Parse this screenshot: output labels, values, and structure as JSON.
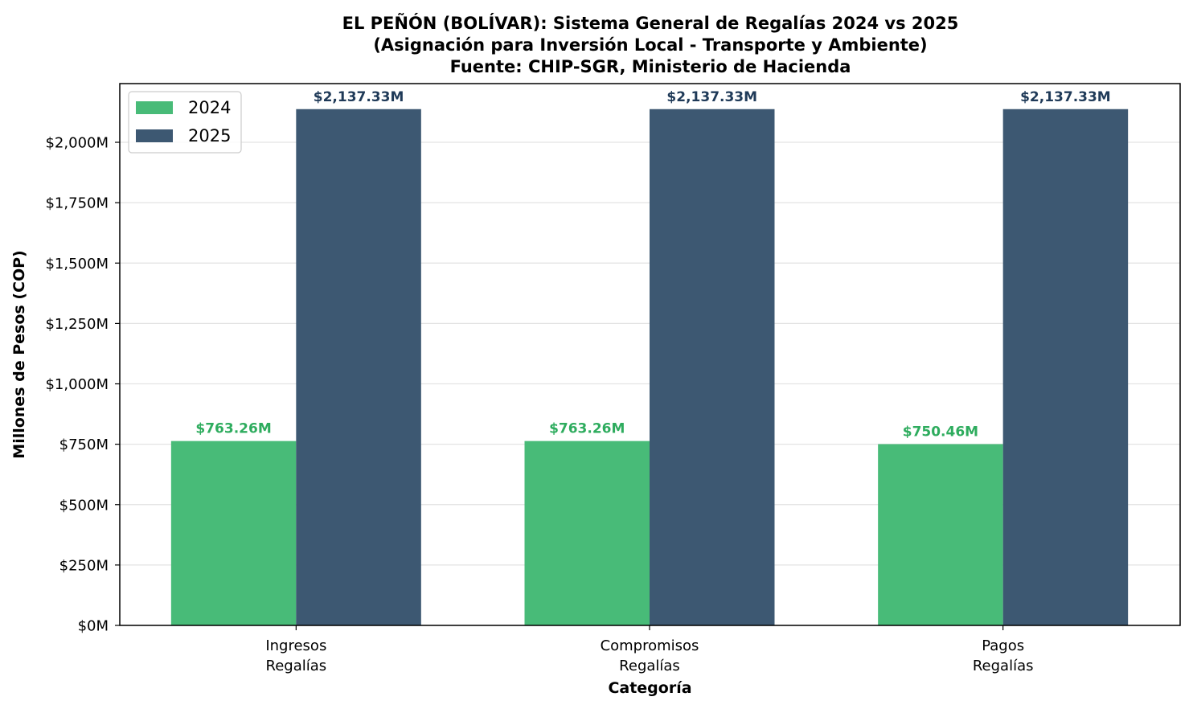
{
  "chart_data": {
    "type": "bar",
    "title_lines": [
      "EL PEÑÓN (BOLÍVAR): Sistema General de Regalías 2024 vs 2025",
      "(Asignación para Inversión Local - Transporte y Ambiente)",
      "Fuente: CHIP-SGR, Ministerio de Hacienda"
    ],
    "xlabel": "Categoría",
    "ylabel": "Millones de Pesos (COP)",
    "categories": [
      [
        "Ingresos",
        "Regalías"
      ],
      [
        "Compromisos",
        "Regalías"
      ],
      [
        "Pagos",
        "Regalías"
      ]
    ],
    "series": [
      {
        "name": "2024",
        "color": "#48bb78",
        "label_color": "#2eac5e",
        "values": [
          763.26,
          763.26,
          750.46
        ],
        "labels": [
          "$763.26M",
          "$763.26M",
          "$750.46M"
        ]
      },
      {
        "name": "2025",
        "color": "#3d5872",
        "label_color": "#1f3a58",
        "values": [
          2137.33,
          2137.33,
          2137.33
        ],
        "labels": [
          "$2,137.33M",
          "$2,137.33M",
          "$2,137.33M"
        ]
      }
    ],
    "ylim": [
      0,
      2243
    ],
    "yticks": [
      0,
      250,
      500,
      750,
      1000,
      1250,
      1500,
      1750,
      2000
    ],
    "ytick_labels": [
      "$0M",
      "$250M",
      "$500M",
      "$750M",
      "$1,000M",
      "$1,250M",
      "$1,500M",
      "$1,750M",
      "$2,000M"
    ],
    "grid": true,
    "legend_position": "top-left"
  }
}
